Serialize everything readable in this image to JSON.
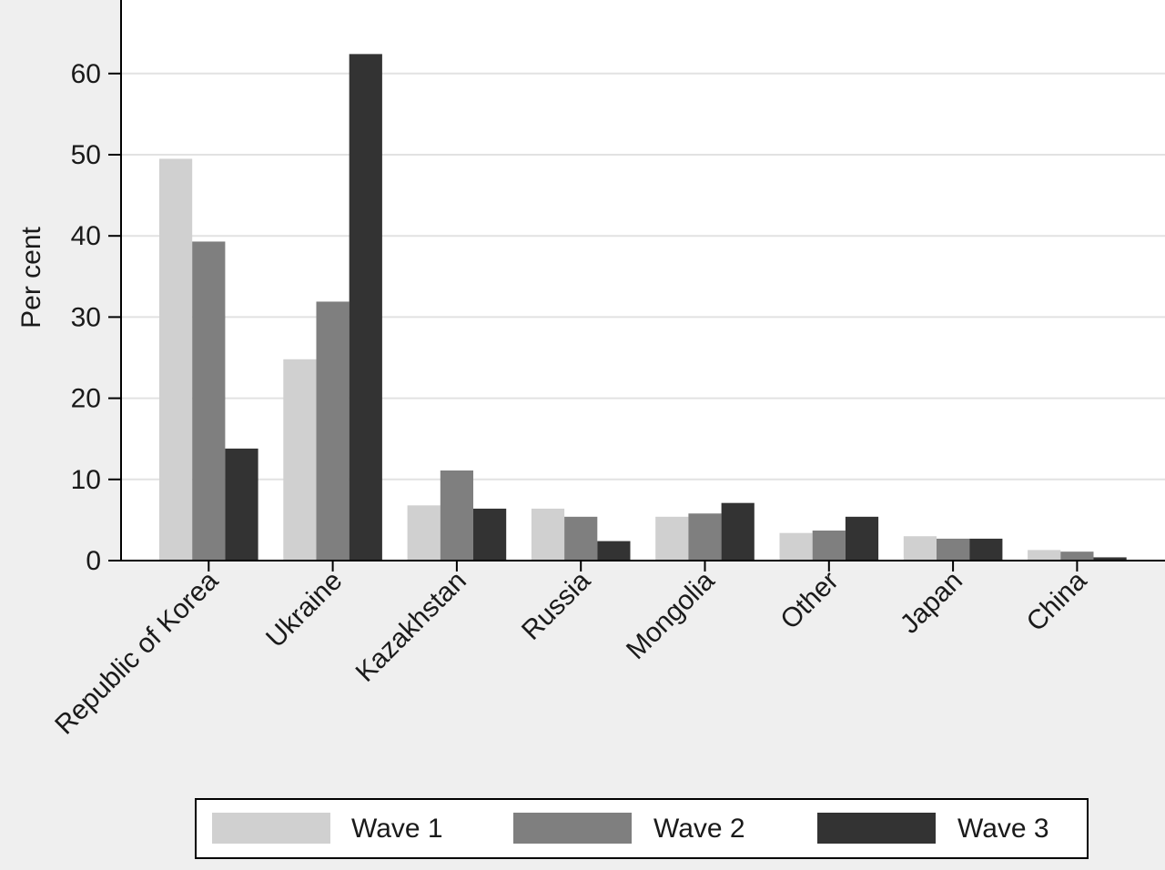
{
  "chart_data": {
    "type": "bar",
    "title": "",
    "xlabel": "",
    "ylabel": "Per cent",
    "ylim": [
      0,
      68
    ],
    "yticks": [
      0,
      10,
      20,
      30,
      40,
      50,
      60
    ],
    "grid": true,
    "legend_position": "bottom",
    "categories": [
      "Republic of Korea",
      "Ukraine",
      "Kazakhstan",
      "Russia",
      "Mongolia",
      "Other",
      "Japan",
      "China"
    ],
    "series": [
      {
        "name": "Wave 1",
        "color": "#d0d0d0",
        "values": [
          49.5,
          24.8,
          6.8,
          6.4,
          5.4,
          3.4,
          3.0,
          1.3
        ]
      },
      {
        "name": "Wave 2",
        "color": "#7f7f7f",
        "values": [
          39.3,
          31.9,
          11.1,
          5.4,
          5.8,
          3.7,
          2.7,
          1.1
        ]
      },
      {
        "name": "Wave 3",
        "color": "#333333",
        "values": [
          13.8,
          62.4,
          6.4,
          2.4,
          7.1,
          5.4,
          2.7,
          0.4
        ]
      }
    ]
  }
}
